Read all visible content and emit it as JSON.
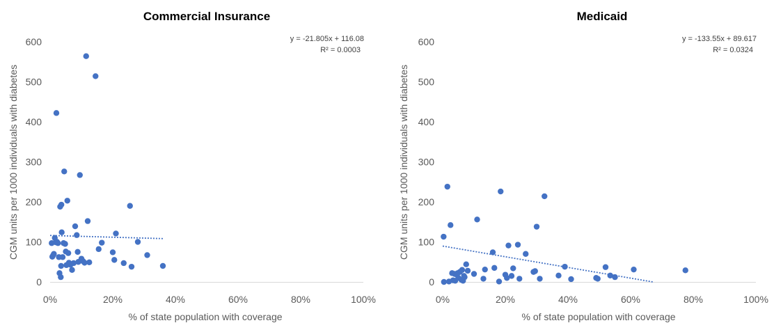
{
  "chart_data": [
    {
      "type": "scatter",
      "title": "Commercial Insurance",
      "xlabel": "% of state population with coverage",
      "ylabel": "CGM units per 1000 individuals with diabetes",
      "xlim": [
        0,
        1
      ],
      "ylim": [
        0,
        600
      ],
      "xticks": [
        "0%",
        "20%",
        "40%",
        "60%",
        "80%",
        "100%"
      ],
      "yticks": [
        "0",
        "100",
        "200",
        "300",
        "400",
        "500",
        "600"
      ],
      "grid": false,
      "color": "#4472c4",
      "trendline": {
        "slope": -21.805,
        "intercept": 116.08,
        "x_range": [
          0,
          0.36
        ]
      },
      "equation": "y = -21.805x + 116.08",
      "r2": "R² = 0.0003",
      "points": [
        [
          0.005,
          97
        ],
        [
          0.007,
          63
        ],
        [
          0.01,
          67
        ],
        [
          0.012,
          70
        ],
        [
          0.015,
          110
        ],
        [
          0.018,
          99
        ],
        [
          0.02,
          422
        ],
        [
          0.022,
          100
        ],
        [
          0.025,
          97
        ],
        [
          0.028,
          62
        ],
        [
          0.03,
          22
        ],
        [
          0.032,
          188
        ],
        [
          0.034,
          12
        ],
        [
          0.035,
          40
        ],
        [
          0.036,
          193
        ],
        [
          0.037,
          124
        ],
        [
          0.04,
          62
        ],
        [
          0.043,
          97
        ],
        [
          0.045,
          276
        ],
        [
          0.048,
          95
        ],
        [
          0.05,
          76
        ],
        [
          0.052,
          42
        ],
        [
          0.055,
          203
        ],
        [
          0.058,
          72
        ],
        [
          0.06,
          48
        ],
        [
          0.065,
          43
        ],
        [
          0.07,
          30
        ],
        [
          0.075,
          47
        ],
        [
          0.08,
          139
        ],
        [
          0.085,
          117
        ],
        [
          0.088,
          75
        ],
        [
          0.09,
          50
        ],
        [
          0.095,
          267
        ],
        [
          0.1,
          58
        ],
        [
          0.105,
          52
        ],
        [
          0.11,
          48
        ],
        [
          0.115,
          564
        ],
        [
          0.12,
          152
        ],
        [
          0.125,
          49
        ],
        [
          0.145,
          514
        ],
        [
          0.155,
          82
        ],
        [
          0.165,
          98
        ],
        [
          0.2,
          74
        ],
        [
          0.205,
          55
        ],
        [
          0.21,
          121
        ],
        [
          0.235,
          47
        ],
        [
          0.255,
          190
        ],
        [
          0.26,
          38
        ],
        [
          0.28,
          100
        ],
        [
          0.31,
          67
        ],
        [
          0.36,
          40
        ]
      ]
    },
    {
      "type": "scatter",
      "title": "Medicaid",
      "xlabel": "% of state population with coverage",
      "ylabel": "CGM units per 1000 individuals with diabetes",
      "xlim": [
        0,
        1
      ],
      "ylim": [
        0,
        600
      ],
      "xticks": [
        "0%",
        "20%",
        "40%",
        "60%",
        "80%",
        "100%"
      ],
      "yticks": [
        "0",
        "100",
        "200",
        "300",
        "400",
        "500",
        "600"
      ],
      "grid": false,
      "color": "#4472c4",
      "trendline": {
        "slope": -133.55,
        "intercept": 89.617,
        "x_range": [
          0,
          0.671
        ]
      },
      "equation": "y = -133.55x + 89.617",
      "r2": "R² = 0.0324",
      "points": [
        [
          0.003,
          113
        ],
        [
          0.004,
          0
        ],
        [
          0.015,
          238
        ],
        [
          0.02,
          1
        ],
        [
          0.025,
          142
        ],
        [
          0.03,
          22
        ],
        [
          0.033,
          4
        ],
        [
          0.038,
          20
        ],
        [
          0.04,
          3
        ],
        [
          0.045,
          18
        ],
        [
          0.048,
          22
        ],
        [
          0.05,
          10
        ],
        [
          0.055,
          25
        ],
        [
          0.06,
          5
        ],
        [
          0.062,
          30
        ],
        [
          0.065,
          3
        ],
        [
          0.068,
          15
        ],
        [
          0.07,
          12
        ],
        [
          0.075,
          44
        ],
        [
          0.08,
          28
        ],
        [
          0.1,
          20
        ],
        [
          0.11,
          156
        ],
        [
          0.13,
          8
        ],
        [
          0.135,
          31
        ],
        [
          0.16,
          74
        ],
        [
          0.165,
          35
        ],
        [
          0.18,
          1
        ],
        [
          0.185,
          226
        ],
        [
          0.2,
          18
        ],
        [
          0.205,
          10
        ],
        [
          0.21,
          91
        ],
        [
          0.22,
          15
        ],
        [
          0.225,
          34
        ],
        [
          0.24,
          93
        ],
        [
          0.245,
          8
        ],
        [
          0.265,
          70
        ],
        [
          0.29,
          25
        ],
        [
          0.295,
          27
        ],
        [
          0.3,
          138
        ],
        [
          0.31,
          8
        ],
        [
          0.325,
          214
        ],
        [
          0.37,
          16
        ],
        [
          0.39,
          38
        ],
        [
          0.41,
          7
        ],
        [
          0.49,
          10
        ],
        [
          0.495,
          8
        ],
        [
          0.52,
          37
        ],
        [
          0.535,
          16
        ],
        [
          0.55,
          12
        ],
        [
          0.61,
          31
        ],
        [
          0.775,
          29
        ]
      ]
    }
  ]
}
